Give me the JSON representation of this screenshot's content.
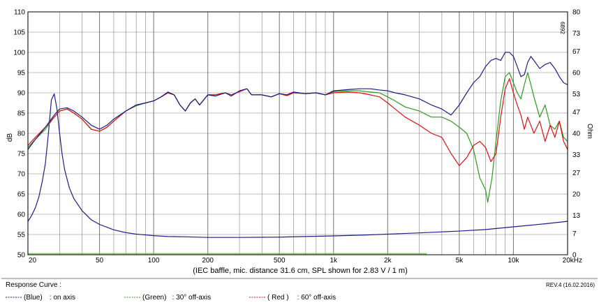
{
  "chart_data": {
    "type": "line",
    "caption": "(IEC baffle, mic. distance 31.6 cm, SPL shown for 2.83 V / 1 m)",
    "ylabel": "dB",
    "y2label": "Ohm",
    "watermark": "6892",
    "xlim": [
      20,
      20000
    ],
    "x_scale": "log",
    "ylim": [
      50,
      110
    ],
    "y2lim": [
      0,
      80
    ],
    "x_ticks": [
      {
        "v": 20,
        "label": "20"
      },
      {
        "v": 50,
        "label": "50"
      },
      {
        "v": 100,
        "label": "100"
      },
      {
        "v": 200,
        "label": "200"
      },
      {
        "v": 500,
        "label": "500"
      },
      {
        "v": 1000,
        "label": "1k"
      },
      {
        "v": 2000,
        "label": "2k"
      },
      {
        "v": 5000,
        "label": "5k"
      },
      {
        "v": 10000,
        "label": "10k"
      },
      {
        "v": 20000,
        "label": "20kHz"
      }
    ],
    "y_ticks": [
      110,
      105,
      100,
      95,
      90,
      85,
      80,
      75,
      70,
      65,
      60,
      55,
      50
    ],
    "y2_ticks": [
      80,
      73,
      67,
      60,
      53,
      47,
      40,
      33,
      27,
      20,
      13,
      7,
      0
    ],
    "colors": {
      "blue": "#1c1c8c",
      "green": "#2e9a1e",
      "red": "#e01010",
      "impedance": "#1c1c8c",
      "grid": "#808080",
      "baseline": "#66cc33"
    },
    "series": [
      {
        "name": "on axis",
        "color": "#1c1c8c",
        "points": [
          [
            20,
            76
          ],
          [
            22,
            78.5
          ],
          [
            25,
            81.5
          ],
          [
            28,
            84.5
          ],
          [
            30,
            86
          ],
          [
            33,
            86.3
          ],
          [
            36,
            85.5
          ],
          [
            40,
            84
          ],
          [
            45,
            82
          ],
          [
            50,
            81
          ],
          [
            55,
            82
          ],
          [
            60,
            83.5
          ],
          [
            70,
            85.5
          ],
          [
            80,
            87
          ],
          [
            90,
            87.5
          ],
          [
            100,
            88
          ],
          [
            110,
            89
          ],
          [
            120,
            90.2
          ],
          [
            130,
            89.5
          ],
          [
            140,
            87
          ],
          [
            150,
            85.5
          ],
          [
            160,
            87.5
          ],
          [
            170,
            88.5
          ],
          [
            180,
            87
          ],
          [
            200,
            89.5
          ],
          [
            220,
            89.2
          ],
          [
            250,
            90
          ],
          [
            270,
            89.2
          ],
          [
            300,
            90.5
          ],
          [
            330,
            91
          ],
          [
            350,
            89.5
          ],
          [
            400,
            89.5
          ],
          [
            450,
            89
          ],
          [
            500,
            89.8
          ],
          [
            550,
            89.5
          ],
          [
            600,
            90.2
          ],
          [
            700,
            89.8
          ],
          [
            800,
            90
          ],
          [
            900,
            89.5
          ],
          [
            1000,
            90.5
          ],
          [
            1200,
            90.8
          ],
          [
            1400,
            91
          ],
          [
            1600,
            91
          ],
          [
            1800,
            90.7
          ],
          [
            2000,
            90.5
          ],
          [
            2200,
            90
          ],
          [
            2500,
            89.5
          ],
          [
            3000,
            88.5
          ],
          [
            3500,
            87
          ],
          [
            4000,
            86
          ],
          [
            4500,
            84.5
          ],
          [
            5000,
            87
          ],
          [
            5500,
            90
          ],
          [
            6000,
            92.5
          ],
          [
            6500,
            94
          ],
          [
            7000,
            96.5
          ],
          [
            7500,
            98
          ],
          [
            8000,
            98.5
          ],
          [
            8500,
            98
          ],
          [
            9000,
            100
          ],
          [
            9500,
            100
          ],
          [
            10000,
            99
          ],
          [
            10500,
            96.5
          ],
          [
            11000,
            94
          ],
          [
            11500,
            94.5
          ],
          [
            12000,
            97.5
          ],
          [
            12500,
            99
          ],
          [
            13000,
            98
          ],
          [
            14000,
            96
          ],
          [
            15000,
            97
          ],
          [
            16000,
            97.5
          ],
          [
            17000,
            96
          ],
          [
            18000,
            94
          ],
          [
            19000,
            92.5
          ],
          [
            20000,
            92
          ]
        ]
      },
      {
        "name": "30° off-axis",
        "color": "#2e9a1e",
        "points": [
          [
            20,
            76.5
          ],
          [
            22,
            78.5
          ],
          [
            25,
            81
          ],
          [
            28,
            84
          ],
          [
            30,
            85.5
          ],
          [
            33,
            86
          ],
          [
            36,
            85
          ],
          [
            40,
            83.5
          ],
          [
            45,
            81
          ],
          [
            50,
            80.5
          ],
          [
            55,
            81.5
          ],
          [
            60,
            83
          ],
          [
            70,
            85.5
          ],
          [
            80,
            86.8
          ],
          [
            90,
            87.5
          ],
          [
            100,
            88
          ],
          [
            110,
            89
          ],
          [
            120,
            90
          ],
          [
            130,
            89.5
          ],
          [
            140,
            87
          ],
          [
            150,
            85.5
          ],
          [
            160,
            87.5
          ],
          [
            170,
            88.5
          ],
          [
            180,
            87
          ],
          [
            200,
            89.5
          ],
          [
            220,
            89.5
          ],
          [
            250,
            90
          ],
          [
            270,
            89.5
          ],
          [
            300,
            90.3
          ],
          [
            330,
            91
          ],
          [
            350,
            89.5
          ],
          [
            400,
            89.5
          ],
          [
            450,
            89
          ],
          [
            500,
            89.8
          ],
          [
            550,
            89.3
          ],
          [
            600,
            90
          ],
          [
            700,
            89.8
          ],
          [
            800,
            90
          ],
          [
            900,
            89.5
          ],
          [
            1000,
            90.3
          ],
          [
            1200,
            90.5
          ],
          [
            1400,
            90.5
          ],
          [
            1600,
            90.2
          ],
          [
            1800,
            90
          ],
          [
            2000,
            89
          ],
          [
            2200,
            88
          ],
          [
            2500,
            86.5
          ],
          [
            3000,
            85.5
          ],
          [
            3500,
            84
          ],
          [
            4000,
            84
          ],
          [
            4500,
            83
          ],
          [
            5000,
            81.5
          ],
          [
            5500,
            80
          ],
          [
            6000,
            76
          ],
          [
            6500,
            69
          ],
          [
            7000,
            66
          ],
          [
            7200,
            63
          ],
          [
            7600,
            69
          ],
          [
            8000,
            78
          ],
          [
            8500,
            88
          ],
          [
            9000,
            94
          ],
          [
            9500,
            95
          ],
          [
            10000,
            92.5
          ],
          [
            10500,
            90
          ],
          [
            11000,
            88.5
          ],
          [
            11500,
            92
          ],
          [
            12000,
            95
          ],
          [
            12500,
            92
          ],
          [
            13000,
            89
          ],
          [
            14000,
            84
          ],
          [
            15000,
            87
          ],
          [
            16000,
            82
          ],
          [
            17000,
            81
          ],
          [
            18000,
            83
          ],
          [
            19000,
            79
          ],
          [
            20000,
            78
          ]
        ]
      },
      {
        "name": "60° off-axis",
        "color": "#e01010",
        "points": [
          [
            20,
            77
          ],
          [
            22,
            79
          ],
          [
            25,
            81.5
          ],
          [
            28,
            84
          ],
          [
            30,
            85.5
          ],
          [
            33,
            86
          ],
          [
            36,
            85
          ],
          [
            40,
            83.5
          ],
          [
            45,
            81
          ],
          [
            50,
            80.5
          ],
          [
            55,
            81.5
          ],
          [
            60,
            83
          ],
          [
            70,
            85.5
          ],
          [
            80,
            87
          ],
          [
            90,
            87.5
          ],
          [
            100,
            88
          ],
          [
            110,
            89
          ],
          [
            120,
            90
          ],
          [
            130,
            89.5
          ],
          [
            140,
            87
          ],
          [
            150,
            85.5
          ],
          [
            160,
            87.5
          ],
          [
            170,
            88.5
          ],
          [
            180,
            87
          ],
          [
            200,
            89.5
          ],
          [
            220,
            89.5
          ],
          [
            250,
            90
          ],
          [
            270,
            89.5
          ],
          [
            300,
            90.3
          ],
          [
            330,
            91
          ],
          [
            350,
            89.5
          ],
          [
            400,
            89.5
          ],
          [
            450,
            89
          ],
          [
            500,
            89.8
          ],
          [
            550,
            89.3
          ],
          [
            600,
            90
          ],
          [
            700,
            89.8
          ],
          [
            800,
            90
          ],
          [
            900,
            89.5
          ],
          [
            1000,
            90
          ],
          [
            1200,
            90.2
          ],
          [
            1400,
            90
          ],
          [
            1600,
            89.5
          ],
          [
            1800,
            89
          ],
          [
            2000,
            87.5
          ],
          [
            2200,
            86
          ],
          [
            2500,
            84
          ],
          [
            3000,
            82
          ],
          [
            3500,
            80
          ],
          [
            4000,
            79
          ],
          [
            4500,
            75
          ],
          [
            5000,
            72
          ],
          [
            5500,
            74
          ],
          [
            6000,
            77
          ],
          [
            6500,
            78
          ],
          [
            7000,
            76.5
          ],
          [
            7500,
            73
          ],
          [
            8000,
            75
          ],
          [
            8500,
            84
          ],
          [
            9000,
            91
          ],
          [
            9500,
            93.5
          ],
          [
            10000,
            90
          ],
          [
            10500,
            87
          ],
          [
            11000,
            84.5
          ],
          [
            11500,
            81
          ],
          [
            12000,
            84
          ],
          [
            13000,
            80
          ],
          [
            14000,
            83
          ],
          [
            15000,
            78
          ],
          [
            16000,
            82
          ],
          [
            17000,
            79
          ],
          [
            18000,
            83
          ],
          [
            19000,
            78
          ],
          [
            20000,
            76
          ]
        ]
      },
      {
        "name": "impedance",
        "color": "#1c1c8c",
        "axis": "right",
        "points": [
          [
            20,
            11
          ],
          [
            21,
            13
          ],
          [
            22,
            15.5
          ],
          [
            23,
            19
          ],
          [
            24,
            24
          ],
          [
            25,
            30
          ],
          [
            26,
            40
          ],
          [
            27,
            51
          ],
          [
            28,
            53
          ],
          [
            29,
            48
          ],
          [
            30,
            40
          ],
          [
            31,
            33
          ],
          [
            32,
            28
          ],
          [
            34,
            22
          ],
          [
            36,
            18.5
          ],
          [
            40,
            14.5
          ],
          [
            45,
            11.5
          ],
          [
            50,
            10
          ],
          [
            60,
            8.2
          ],
          [
            70,
            7.3
          ],
          [
            80,
            6.8
          ],
          [
            100,
            6.3
          ],
          [
            120,
            6
          ],
          [
            150,
            5.9
          ],
          [
            200,
            5.7
          ],
          [
            300,
            5.7
          ],
          [
            500,
            5.8
          ],
          [
            700,
            6
          ],
          [
            1000,
            6.2
          ],
          [
            1500,
            6.5
          ],
          [
            2000,
            6.8
          ],
          [
            3000,
            7.2
          ],
          [
            5000,
            7.8
          ],
          [
            7000,
            8.3
          ],
          [
            10000,
            9.2
          ],
          [
            15000,
            10.2
          ],
          [
            20000,
            11
          ]
        ]
      }
    ],
    "bottom_label": "Response Curve :",
    "rev_label": "REV.4 (16.02.2016)",
    "legend": [
      {
        "prefix": "(Blue)",
        "text": ": on axis",
        "color": "#1c1c8c"
      },
      {
        "prefix": "(Green)",
        "text": ": 30° off-axis",
        "color": "#2e9a1e"
      },
      {
        "prefix": "( Red )",
        "text": ": 60° off-axis",
        "color": "#e01010"
      }
    ]
  }
}
